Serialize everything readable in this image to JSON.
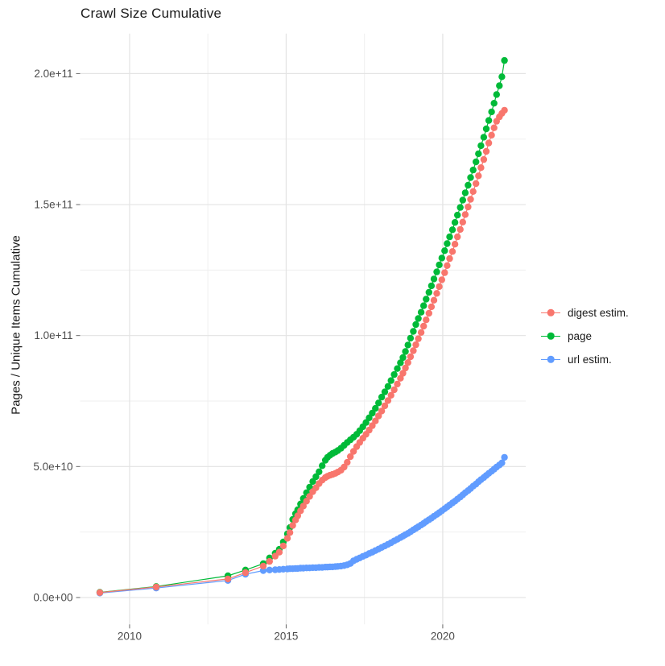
{
  "chart_data": {
    "type": "line",
    "title": "Crawl Size Cumulative",
    "xlabel": "",
    "ylabel": "Pages / Unique Items Cumulative",
    "legend_position": "right",
    "grid": true,
    "background": "#ffffff",
    "grid_major_color": "#e3e3e3",
    "grid_minor_color": "#efefef",
    "tick_text_color": "#4d4d4d",
    "xlim": [
      2008.42,
      2022.65
    ],
    "ylim_billions": [
      -10.25,
      215.25
    ],
    "x_ticks": [
      {
        "value": 2010,
        "label": "2010"
      },
      {
        "value": 2015,
        "label": "2015"
      },
      {
        "value": 2020,
        "label": "2020"
      }
    ],
    "x_minor_ticks": [
      2012.5,
      2017.5
    ],
    "y_ticks": [
      {
        "value": 0,
        "label": "0.0e+00"
      },
      {
        "value": 50,
        "label": "5.0e+10"
      },
      {
        "value": 100,
        "label": "1.0e+11"
      },
      {
        "value": 150,
        "label": "1.5e+11"
      },
      {
        "value": 200,
        "label": "2.0e+11"
      }
    ],
    "y_minor_ticks": [
      25,
      75,
      125,
      175
    ],
    "x_years": [
      2009.05,
      2010.85,
      2013.14,
      2013.7,
      2014.27,
      2014.47,
      2014.65,
      2014.78,
      2014.91,
      2015.04,
      2015.12,
      2015.21,
      2015.3,
      2015.37,
      2015.46,
      2015.55,
      2015.65,
      2015.75,
      2015.85,
      2015.95,
      2016.05,
      2016.15,
      2016.25,
      2016.32,
      2016.4,
      2016.48,
      2016.57,
      2016.65,
      2016.75,
      2016.85,
      2016.95,
      2017.05,
      2017.15,
      2017.25,
      2017.35,
      2017.45,
      2017.55,
      2017.65,
      2017.75,
      2017.85,
      2017.95,
      2018.05,
      2018.15,
      2018.25,
      2018.35,
      2018.45,
      2018.55,
      2018.65,
      2018.73,
      2018.81,
      2018.89,
      2018.97,
      2019.06,
      2019.14,
      2019.22,
      2019.31,
      2019.39,
      2019.47,
      2019.56,
      2019.64,
      2019.72,
      2019.81,
      2019.89,
      2019.97,
      2020.06,
      2020.14,
      2020.22,
      2020.31,
      2020.39,
      2020.47,
      2020.56,
      2020.64,
      2020.72,
      2020.81,
      2020.89,
      2020.97,
      2021.06,
      2021.14,
      2021.22,
      2021.31,
      2021.39,
      2021.47,
      2021.56,
      2021.64,
      2021.72,
      2021.81,
      2021.89,
      2021.97
    ],
    "series": [
      {
        "name": "url estim.",
        "color": "#619CFF",
        "y_billions": [
          1.7,
          3.6,
          6.5,
          8.9,
          10.3,
          10.5,
          10.6,
          10.7,
          10.8,
          10.9,
          11.0,
          11.0,
          11.1,
          11.1,
          11.2,
          11.2,
          11.3,
          11.3,
          11.4,
          11.4,
          11.5,
          11.5,
          11.6,
          11.6,
          11.7,
          11.7,
          11.8,
          11.9,
          12.0,
          12.2,
          12.5,
          13.0,
          14.0,
          14.6,
          15.1,
          15.7,
          16.2,
          16.8,
          17.3,
          17.9,
          18.5,
          19.1,
          19.7,
          20.3,
          20.9,
          21.6,
          22.2,
          22.9,
          23.4,
          24.0,
          24.5,
          25.1,
          25.8,
          26.4,
          27.0,
          27.7,
          28.3,
          29.0,
          29.7,
          30.3,
          31.0,
          31.7,
          32.4,
          33.1,
          33.9,
          34.6,
          35.3,
          36.1,
          36.8,
          37.6,
          38.4,
          39.2,
          40.0,
          40.8,
          41.6,
          42.5,
          43.3,
          44.2,
          45.0,
          45.8,
          46.6,
          47.4,
          48.2,
          49.0,
          49.8,
          50.6,
          51.4,
          53.5
        ]
      },
      {
        "name": "page",
        "color": "#00BA38",
        "y_billions": [
          2.0,
          4.2,
          8.3,
          10.5,
          12.9,
          15.1,
          16.9,
          18.4,
          21.2,
          24.3,
          26.7,
          29.8,
          32.0,
          33.5,
          35.7,
          37.8,
          40.0,
          42.1,
          44.3,
          46.1,
          48.0,
          50.3,
          52.4,
          53.5,
          54.3,
          55.0,
          55.5,
          56.1,
          57.0,
          58.1,
          59.2,
          60.2,
          61.2,
          62.3,
          63.7,
          65.2,
          66.8,
          68.6,
          70.4,
          72.2,
          74.3,
          76.5,
          78.5,
          80.6,
          82.8,
          85.1,
          87.4,
          89.6,
          91.6,
          93.9,
          96.4,
          99.0,
          101.6,
          104.2,
          106.5,
          108.9,
          111.4,
          113.9,
          116.5,
          119.0,
          121.6,
          124.3,
          127.0,
          129.6,
          132.4,
          135.1,
          137.7,
          140.4,
          143.2,
          146.0,
          148.9,
          151.7,
          154.5,
          157.4,
          160.3,
          163.2,
          166.3,
          169.4,
          172.5,
          175.7,
          178.9,
          182.1,
          185.4,
          188.7,
          192.0,
          195.4,
          198.8,
          205.0
        ]
      },
      {
        "name": "digest estim.",
        "color": "#F8766D",
        "y_billions": [
          1.9,
          4.0,
          7.1,
          9.5,
          12.0,
          13.8,
          15.8,
          17.3,
          19.7,
          22.6,
          24.8,
          27.5,
          29.6,
          31.2,
          33.1,
          34.9,
          36.8,
          38.6,
          40.4,
          41.9,
          43.5,
          44.8,
          45.8,
          46.3,
          46.7,
          47.0,
          47.4,
          47.9,
          48.6,
          49.8,
          51.6,
          53.8,
          55.8,
          57.6,
          59.2,
          60.8,
          62.3,
          63.9,
          65.6,
          67.4,
          69.3,
          71.2,
          73.2,
          75.2,
          77.2,
          79.3,
          81.5,
          83.7,
          85.6,
          87.6,
          89.7,
          91.9,
          94.2,
          96.5,
          98.8,
          101.2,
          103.6,
          106.0,
          108.5,
          111.0,
          113.5,
          116.1,
          118.7,
          121.3,
          124.0,
          126.7,
          129.4,
          132.1,
          134.9,
          137.7,
          140.5,
          143.3,
          146.2,
          149.1,
          152.0,
          155.0,
          158.0,
          161.0,
          164.1,
          167.2,
          170.3,
          173.5,
          176.5,
          179.3,
          181.8,
          183.5,
          184.8,
          186.0
        ]
      }
    ],
    "legend_order": [
      "digest estim.",
      "page",
      "url estim."
    ]
  }
}
